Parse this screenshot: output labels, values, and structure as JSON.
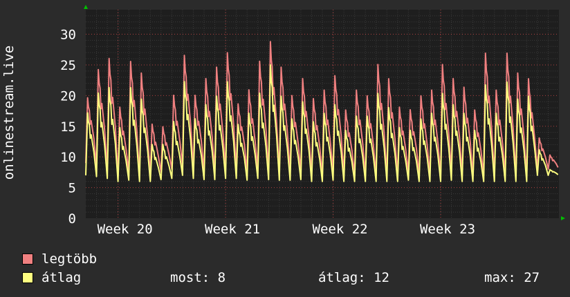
{
  "chart_data": {
    "type": "line",
    "ylabel": "onlinestream.live",
    "ylim": [
      0,
      34
    ],
    "y_ticks": [
      0,
      5,
      10,
      15,
      20,
      25,
      30
    ],
    "x_ticks": [
      "Week 20",
      "Week 21",
      "Week 22",
      "Week 23"
    ],
    "grid": true,
    "n_days": 44,
    "x_start_day": 0,
    "x_end_day": 44,
    "week_tick_days": [
      3,
      13,
      23,
      33
    ],
    "series": [
      {
        "name": "legtöbb",
        "color": "#f08080",
        "daily_peaks": [
          20.5,
          25.5,
          27.5,
          19,
          27,
          25,
          16,
          15.5,
          21,
          28,
          21,
          24,
          26,
          28.5,
          19.5,
          22,
          27,
          30.5,
          26,
          21,
          24,
          20.5,
          22,
          24.5,
          18.5,
          22,
          21,
          26.5,
          24,
          19,
          18.5,
          21,
          22,
          26.5,
          24,
          22.5,
          18.5,
          28.5,
          22,
          28.5,
          25,
          24,
          13.5,
          10.5
        ],
        "daily_mins": [
          9,
          8.5,
          8,
          7,
          7.5,
          7,
          7,
          7.5,
          8,
          8.5,
          8,
          7.5,
          7.5,
          8,
          8,
          7.5,
          8,
          7.5,
          7.5,
          7.5,
          7.5,
          7,
          7,
          7.5,
          7,
          7,
          7,
          7,
          7,
          7,
          7.5,
          7,
          7,
          7,
          7.5,
          7,
          7,
          7,
          7,
          7,
          7,
          7,
          8,
          8
        ]
      },
      {
        "name": "átlag",
        "color": "#ffff80",
        "daily_peaks": [
          18,
          21.5,
          22.5,
          15.5,
          22.5,
          20.5,
          12.5,
          12.5,
          16.5,
          23.5,
          17,
          19.5,
          21,
          23.5,
          16,
          18,
          21.5,
          26.5,
          21,
          17,
          20,
          16.5,
          18,
          19.5,
          15,
          17.5,
          17.5,
          21.5,
          19,
          15.5,
          15,
          17,
          18,
          21.5,
          19.5,
          18,
          15,
          23,
          18,
          23.5,
          20.5,
          21,
          11.5,
          8
        ],
        "daily_mins": [
          7,
          6.8,
          6.5,
          6,
          6.2,
          6,
          6,
          6.3,
          6.5,
          7,
          6.5,
          6.3,
          6.3,
          6.5,
          6.5,
          6.2,
          6.5,
          6.3,
          6.2,
          6.2,
          6.3,
          6,
          6,
          6.2,
          6,
          6,
          6,
          6,
          6,
          6,
          6.2,
          6,
          6,
          6,
          6.2,
          6,
          6,
          6,
          6,
          6,
          6,
          6,
          7,
          7
        ]
      }
    ]
  },
  "legend": [
    {
      "label": "legtöbb",
      "color": "#f08080"
    },
    {
      "label": "átlag",
      "color": "#ffff80"
    }
  ],
  "stats": {
    "most_label": "most:",
    "most_value": "8",
    "atlag_label": "átlag:",
    "atlag_value": "12",
    "max_label": "max:",
    "max_value": "27"
  },
  "colors": {
    "background": "#2b2b2b",
    "plot_background": "#1e1e1e",
    "grid_minor": "#3a3a3a",
    "grid_major": "#b04040",
    "axis_arrow": "#00c000"
  }
}
